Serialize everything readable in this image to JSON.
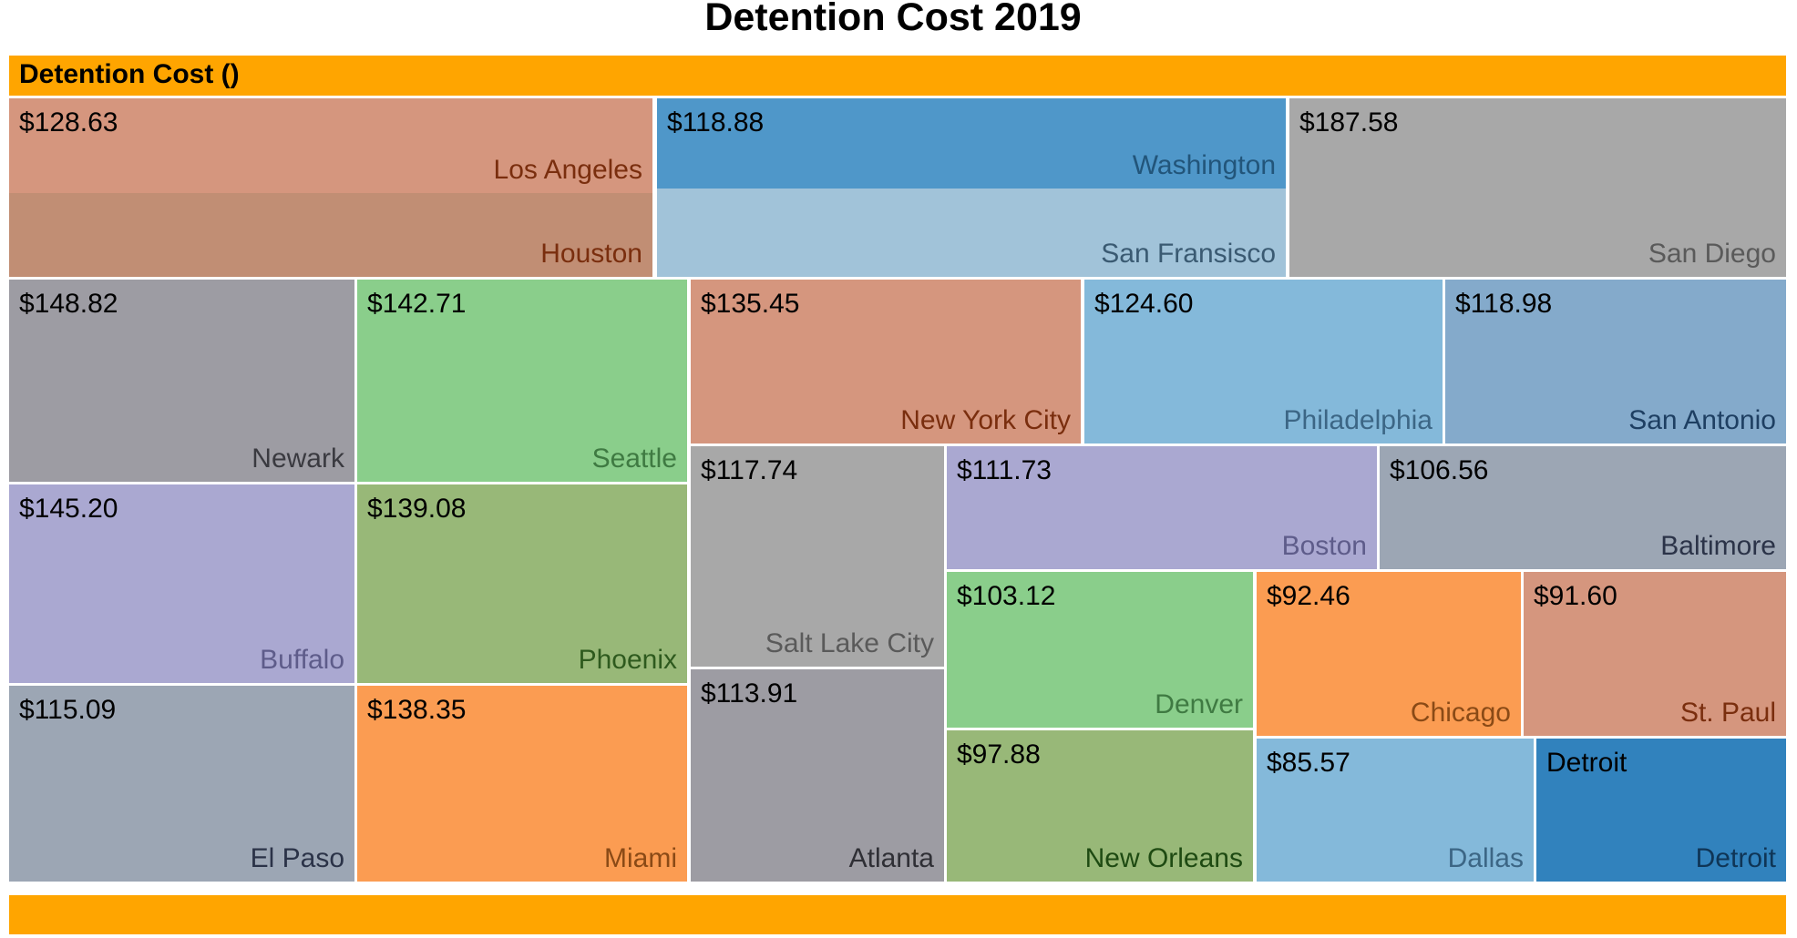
{
  "chart_data": {
    "type": "treemap",
    "title": "Detention Cost 2019",
    "root_label": "Detention Cost ()",
    "colors": {
      "header": "#FFA500"
    },
    "nodes": [
      {
        "name": "Los Angeles",
        "value_label": "$128.63",
        "fill": "#D5967E",
        "text": "#7A2E0E"
      },
      {
        "name": "Houston",
        "value_label": "",
        "fill": "#C18E74",
        "text": "#7A2E0E"
      },
      {
        "name": "Washington",
        "value_label": "$118.88",
        "fill": "#4F97C9",
        "text": "#22557A"
      },
      {
        "name": "San Fransisco",
        "value_label": "",
        "fill": "#A1C3D9",
        "text": "#3A5A72"
      },
      {
        "name": "San Diego",
        "value_label": "$187.58",
        "fill": "#A8A8A8",
        "text": "#5A5A5A"
      },
      {
        "name": "Newark",
        "value_label": "$148.82",
        "fill": "#9D9CA3",
        "text": "#3A3A40"
      },
      {
        "name": "Seattle",
        "value_label": "$142.71",
        "fill": "#8ACE8B",
        "text": "#3F7A42"
      },
      {
        "name": "New York City",
        "value_label": "$135.45",
        "fill": "#D5967E",
        "text": "#7A2E0E"
      },
      {
        "name": "Philadelphia",
        "value_label": "$124.60",
        "fill": "#84B9DA",
        "text": "#3C6685"
      },
      {
        "name": "San Antonio",
        "value_label": "$118.98",
        "fill": "#84AACB",
        "text": "#1E3F62"
      },
      {
        "name": "Buffalo",
        "value_label": "$145.20",
        "fill": "#AAA8D1",
        "text": "#5E5C8A"
      },
      {
        "name": "Phoenix",
        "value_label": "$139.08",
        "fill": "#98B878",
        "text": "#2E5A1E"
      },
      {
        "name": "Salt Lake City",
        "value_label": "$117.74",
        "fill": "#A8A8A8",
        "text": "#5A5A5A"
      },
      {
        "name": "Boston",
        "value_label": "$111.73",
        "fill": "#AAA8D1",
        "text": "#5E5C8A"
      },
      {
        "name": "Baltimore",
        "value_label": "$106.56",
        "fill": "#9CA6B4",
        "text": "#2B3348"
      },
      {
        "name": "Denver",
        "value_label": "$103.12",
        "fill": "#8ACE8B",
        "text": "#3F7A42"
      },
      {
        "name": "Chicago",
        "value_label": "$92.46",
        "fill": "#FB9C52",
        "text": "#8A4A16"
      },
      {
        "name": "St. Paul",
        "value_label": "$91.60",
        "fill": "#D5967E",
        "text": "#7A2E0E"
      },
      {
        "name": "El Paso",
        "value_label": "$115.09",
        "fill": "#9CA6B4",
        "text": "#2B3348"
      },
      {
        "name": "Miami",
        "value_label": "$138.35",
        "fill": "#FB9C52",
        "text": "#8A4A16"
      },
      {
        "name": "Atlanta",
        "value_label": "$113.91",
        "fill": "#9D9CA3",
        "text": "#2F2F35"
      },
      {
        "name": "New Orleans",
        "value_label": "$97.88",
        "fill": "#98B878",
        "text": "#1E4A12"
      },
      {
        "name": "Dallas",
        "value_label": "$85.57",
        "fill": "#84B9DA",
        "text": "#3C6685"
      },
      {
        "name": "Detroit",
        "value_label": "Detroit",
        "fill": "#3182BD",
        "text": "#0F3556"
      }
    ]
  }
}
